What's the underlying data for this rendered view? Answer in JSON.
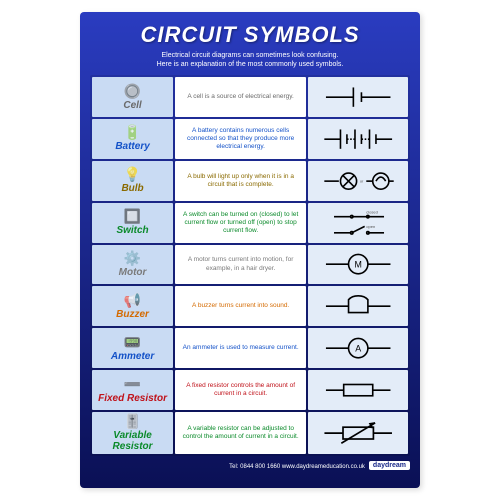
{
  "poster": {
    "title": "CIRCUIT SYMBOLS",
    "subtitle_l1": "Electrical circuit diagrams can sometimes look confusing.",
    "subtitle_l2": "Here is an explanation of the most commonly used symbols.",
    "bg_gradient_from": "#2a3cc0",
    "bg_gradient_to": "#0a1055",
    "title_color": "#ffffff",
    "col_name_bg": "#c9dbf3",
    "col_desc_bg": "#ffffff",
    "col_sym_bg": "#e3ecf8",
    "footer_brand": "daydream",
    "footer_text": "Tel: 0844 800 1660  www.daydreameducation.co.uk"
  },
  "rows": [
    {
      "name": "Cell",
      "name_color": "#6a6a6a",
      "icon": "🔘",
      "desc": "A cell is a source of electrical energy.",
      "desc_color": "#6a6a6a",
      "symbol": "cell"
    },
    {
      "name": "Battery",
      "name_color": "#1452c8",
      "icon": "🔋",
      "desc": "A battery contains numerous cells connected so that they produce more electrical energy.",
      "desc_color": "#1452c8",
      "symbol": "battery"
    },
    {
      "name": "Bulb",
      "name_color": "#8a6a00",
      "icon": "💡",
      "desc": "A bulb will light up only when it is in a circuit that is complete.",
      "desc_color": "#8a6a00",
      "symbol": "bulb"
    },
    {
      "name": "Switch",
      "name_color": "#0a8a2a",
      "icon": "🔲",
      "desc": "A switch can be turned on (closed) to let current flow or turned off (open) to stop current flow.",
      "desc_color": "#0a8a2a",
      "symbol": "switch"
    },
    {
      "name": "Motor",
      "name_color": "#7a7a7a",
      "icon": "⚙️",
      "desc": "A motor turns current into motion, for example, in a hair dryer.",
      "desc_color": "#7a7a7a",
      "symbol": "motor"
    },
    {
      "name": "Buzzer",
      "name_color": "#d46a00",
      "icon": "📢",
      "desc": "A buzzer turns current into sound.",
      "desc_color": "#d46a00",
      "symbol": "buzzer"
    },
    {
      "name": "Ammeter",
      "name_color": "#1452c8",
      "icon": "📟",
      "desc": "An ammeter is used to measure current.",
      "desc_color": "#1452c8",
      "symbol": "ammeter"
    },
    {
      "name": "Fixed Resistor",
      "name_color": "#c0121a",
      "icon": "➖",
      "desc": "A fixed resistor controls the amount of current in a circuit.",
      "desc_color": "#c0121a",
      "symbol": "fixed_resistor"
    },
    {
      "name": "Variable Resistor",
      "name_color": "#0a8a2a",
      "icon": "🎚️",
      "desc": "A variable resistor can be adjusted to control the amount of current in a circuit.",
      "desc_color": "#0a8a2a",
      "symbol": "variable_resistor"
    }
  ]
}
